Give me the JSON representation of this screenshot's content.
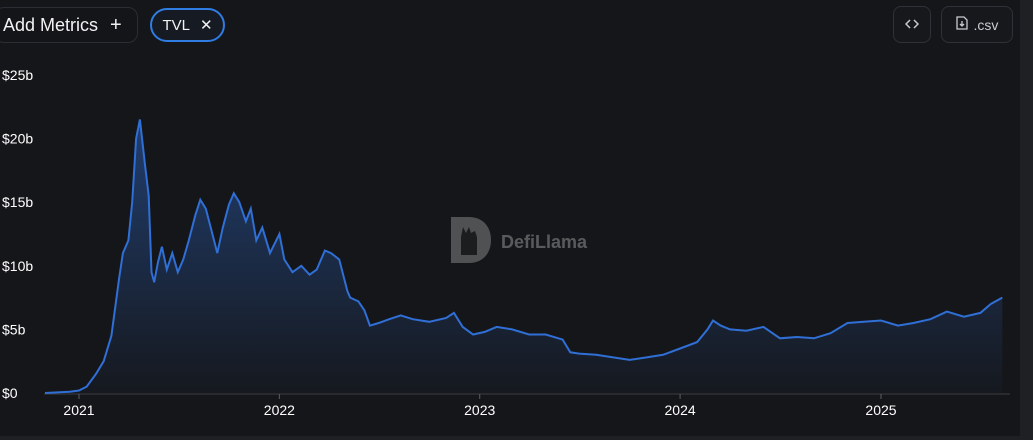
{
  "toolbar": {
    "add_metrics_label": "Add Metrics",
    "add_icon": "plus-icon",
    "metric_chip_label": "TVL",
    "remove_icon": "close-icon",
    "embed_icon": "code-icon",
    "csv_label": ".csv",
    "csv_icon": "download-file-icon"
  },
  "watermark": {
    "text": "DefiLlama"
  },
  "colors": {
    "line": "#2f6fd6",
    "accent": "#2f7ce3",
    "background": "#151619"
  },
  "chart_data": {
    "type": "area",
    "title": "",
    "xlabel": "",
    "ylabel": "",
    "ylim": [
      0,
      25
    ],
    "y_ticks": [
      "$0",
      "$5b",
      "$10b",
      "$15b",
      "$20b",
      "$25b"
    ],
    "x_ticks": [
      "2021",
      "2022",
      "2023",
      "2024",
      "2025"
    ],
    "series": [
      {
        "values": [
          [
            "2020-10-31",
            0.0
          ],
          [
            "2020-12-15",
            0.1
          ],
          [
            "2021-01-01",
            0.2
          ],
          [
            "2021-01-15",
            0.5
          ],
          [
            "2021-02-01",
            1.5
          ],
          [
            "2021-02-15",
            2.5
          ],
          [
            "2021-03-01",
            4.5
          ],
          [
            "2021-03-15",
            9.0
          ],
          [
            "2021-03-22",
            11.0
          ],
          [
            "2021-04-01",
            12.0
          ],
          [
            "2021-04-08",
            15.0
          ],
          [
            "2021-04-15",
            20.0
          ],
          [
            "2021-04-22",
            21.5
          ],
          [
            "2021-05-01",
            18.0
          ],
          [
            "2021-05-08",
            15.5
          ],
          [
            "2021-05-13",
            9.5
          ],
          [
            "2021-05-18",
            8.7
          ],
          [
            "2021-05-25",
            10.3
          ],
          [
            "2021-06-01",
            11.5
          ],
          [
            "2021-06-10",
            9.7
          ],
          [
            "2021-06-20",
            11.0
          ],
          [
            "2021-06-30",
            9.5
          ],
          [
            "2021-07-10",
            10.5
          ],
          [
            "2021-07-20",
            12.0
          ],
          [
            "2021-08-01",
            14.0
          ],
          [
            "2021-08-10",
            15.2
          ],
          [
            "2021-08-20",
            14.5
          ],
          [
            "2021-09-01",
            12.5
          ],
          [
            "2021-09-10",
            11.0
          ],
          [
            "2021-09-20",
            13.0
          ],
          [
            "2021-10-01",
            14.8
          ],
          [
            "2021-10-10",
            15.7
          ],
          [
            "2021-10-20",
            15.0
          ],
          [
            "2021-11-01",
            13.5
          ],
          [
            "2021-11-10",
            14.5
          ],
          [
            "2021-11-20",
            12.0
          ],
          [
            "2021-12-01",
            13.0
          ],
          [
            "2021-12-15",
            11.0
          ],
          [
            "2022-01-01",
            12.5
          ],
          [
            "2022-01-10",
            10.5
          ],
          [
            "2022-01-25",
            9.5
          ],
          [
            "2022-02-10",
            10.0
          ],
          [
            "2022-02-25",
            9.3
          ],
          [
            "2022-03-10",
            9.7
          ],
          [
            "2022-03-25",
            11.2
          ],
          [
            "2022-04-05",
            11.0
          ],
          [
            "2022-04-20",
            10.5
          ],
          [
            "2022-05-05",
            8.0
          ],
          [
            "2022-05-10",
            7.5
          ],
          [
            "2022-05-25",
            7.2
          ],
          [
            "2022-06-05",
            6.5
          ],
          [
            "2022-06-15",
            5.3
          ],
          [
            "2022-07-01",
            5.5
          ],
          [
            "2022-07-20",
            5.8
          ],
          [
            "2022-08-10",
            6.1
          ],
          [
            "2022-09-01",
            5.8
          ],
          [
            "2022-10-01",
            5.6
          ],
          [
            "2022-11-01",
            5.9
          ],
          [
            "2022-11-15",
            6.3
          ],
          [
            "2022-12-01",
            5.2
          ],
          [
            "2022-12-20",
            4.6
          ],
          [
            "2023-01-10",
            4.8
          ],
          [
            "2023-02-01",
            5.2
          ],
          [
            "2023-03-01",
            5.0
          ],
          [
            "2023-04-01",
            4.6
          ],
          [
            "2023-05-01",
            4.6
          ],
          [
            "2023-06-01",
            4.2
          ],
          [
            "2023-06-15",
            3.2
          ],
          [
            "2023-07-01",
            3.1
          ],
          [
            "2023-08-01",
            3.0
          ],
          [
            "2023-09-01",
            2.8
          ],
          [
            "2023-10-01",
            2.6
          ],
          [
            "2023-11-01",
            2.8
          ],
          [
            "2023-12-01",
            3.0
          ],
          [
            "2024-01-01",
            3.5
          ],
          [
            "2024-02-01",
            4.0
          ],
          [
            "2024-02-20",
            5.0
          ],
          [
            "2024-03-01",
            5.7
          ],
          [
            "2024-03-15",
            5.3
          ],
          [
            "2024-04-01",
            5.0
          ],
          [
            "2024-05-01",
            4.9
          ],
          [
            "2024-06-01",
            5.2
          ],
          [
            "2024-07-01",
            4.3
          ],
          [
            "2024-08-01",
            4.4
          ],
          [
            "2024-09-01",
            4.3
          ],
          [
            "2024-10-01",
            4.7
          ],
          [
            "2024-11-01",
            5.5
          ],
          [
            "2024-12-01",
            5.6
          ],
          [
            "2025-01-01",
            5.7
          ],
          [
            "2025-02-01",
            5.3
          ],
          [
            "2025-03-01",
            5.5
          ],
          [
            "2025-04-01",
            5.8
          ],
          [
            "2025-05-01",
            6.4
          ],
          [
            "2025-06-01",
            6.0
          ],
          [
            "2025-07-01",
            6.3
          ],
          [
            "2025-07-20",
            7.0
          ],
          [
            "2025-08-10",
            7.5
          ]
        ]
      }
    ]
  }
}
